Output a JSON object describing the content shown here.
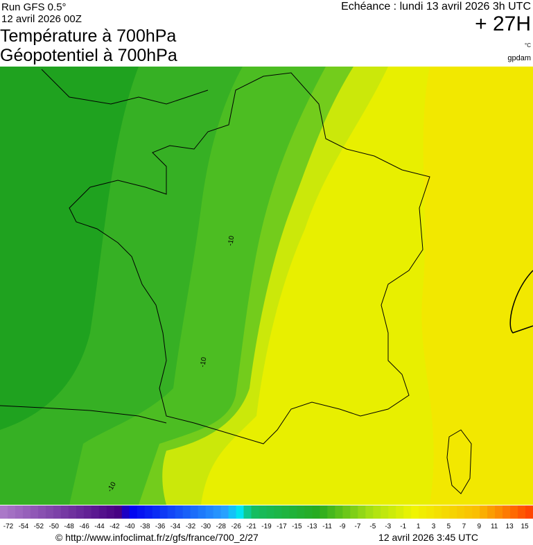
{
  "header": {
    "run": "Run GFS 0.5°",
    "run_date": "12 avril 2026 00Z",
    "title_1": "Température à 700hPa",
    "title_2": "Géopotentiel à 700hPa",
    "forecast": "Echéance : lundi 13 avril 2026 3h UTC",
    "lead": "+ 27H",
    "unit_temp": "°C",
    "unit_geo": "gpdam"
  },
  "map": {
    "contour_labels": [
      "-10",
      "-10",
      "-10"
    ]
  },
  "legend": {
    "labels": [
      "-72",
      "-54",
      "-52",
      "-50",
      "-48",
      "-46",
      "-44",
      "-42",
      "-40",
      "-38",
      "-36",
      "-34",
      "-32",
      "-30",
      "-28",
      "-26",
      "-21",
      "-19",
      "-17",
      "-15",
      "-13",
      "-11",
      "-9",
      "-7",
      "-5",
      "-3",
      "-1",
      "1",
      "3",
      "5",
      "7",
      "9",
      "11",
      "13",
      "15"
    ]
  },
  "footer": {
    "source": "© http://www.infoclimat.fr/z/gfs/france/700_2/27",
    "generated": "12 avril 2026  3:45 UTC"
  }
}
